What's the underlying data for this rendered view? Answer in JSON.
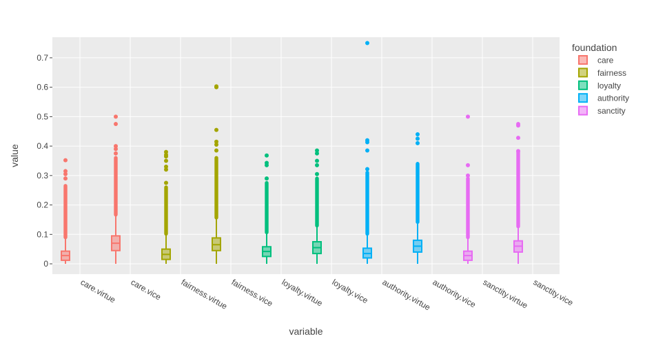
{
  "chart_data": {
    "type": "box",
    "xlabel": "variable",
    "ylabel": "value",
    "ylim": [
      -0.035,
      0.77
    ],
    "yticks": [
      0,
      0.1,
      0.2,
      0.3,
      0.4,
      0.5,
      0.6,
      0.7
    ],
    "ytick_labels": [
      "0",
      "0.1",
      "0.2",
      "0.3",
      "0.4",
      "0.5",
      "0.6",
      "0.7"
    ],
    "grid": true,
    "legend": {
      "title": "foundation",
      "placement": "top-right",
      "items": [
        {
          "name": "care",
          "color": "#F8766D"
        },
        {
          "name": "fairness",
          "color": "#A3A500"
        },
        {
          "name": "loyalty",
          "color": "#00BF7D"
        },
        {
          "name": "authority",
          "color": "#00B0F6"
        },
        {
          "name": "sanctity",
          "color": "#E76BF3"
        }
      ]
    },
    "categories": [
      "care.virtue",
      "care.vice",
      "fairness.virtue",
      "fairness.vice",
      "loyalty.virtue",
      "loyalty.vice",
      "authority.virtue",
      "authority.vice",
      "sanctity.virtue",
      "sanctity.vice"
    ],
    "boxes": [
      {
        "category": "care.virtue",
        "foundation": "care",
        "q1": 0.012,
        "median": 0.028,
        "q3": 0.043,
        "whisker_low": 0.0,
        "whisker_high": 0.088,
        "outliers_from": 0.09,
        "outliers_to": 0.265,
        "outliers": [
          0.29,
          0.305,
          0.315,
          0.352
        ]
      },
      {
        "category": "care.vice",
        "foundation": "care",
        "q1": 0.045,
        "median": 0.07,
        "q3": 0.095,
        "whisker_low": 0.0,
        "whisker_high": 0.165,
        "outliers_from": 0.167,
        "outliers_to": 0.36,
        "outliers": [
          0.375,
          0.39,
          0.4,
          0.475,
          0.5
        ]
      },
      {
        "category": "fairness.virtue",
        "foundation": "fairness",
        "q1": 0.015,
        "median": 0.032,
        "q3": 0.05,
        "whisker_low": 0.0,
        "whisker_high": 0.1,
        "outliers_from": 0.102,
        "outliers_to": 0.26,
        "outliers": [
          0.275,
          0.32,
          0.33,
          0.35,
          0.365,
          0.37,
          0.38
        ]
      },
      {
        "category": "fairness.vice",
        "foundation": "fairness",
        "q1": 0.045,
        "median": 0.065,
        "q3": 0.088,
        "whisker_low": 0.0,
        "whisker_high": 0.155,
        "outliers_from": 0.157,
        "outliers_to": 0.36,
        "outliers": [
          0.385,
          0.405,
          0.415,
          0.455,
          0.6,
          0.603
        ]
      },
      {
        "category": "loyalty.virtue",
        "foundation": "loyalty",
        "q1": 0.025,
        "median": 0.042,
        "q3": 0.058,
        "whisker_low": 0.0,
        "whisker_high": 0.105,
        "outliers_from": 0.107,
        "outliers_to": 0.275,
        "outliers": [
          0.29,
          0.335,
          0.343,
          0.368
        ]
      },
      {
        "category": "loyalty.vice",
        "foundation": "loyalty",
        "q1": 0.035,
        "median": 0.055,
        "q3": 0.075,
        "whisker_low": 0.0,
        "whisker_high": 0.128,
        "outliers_from": 0.13,
        "outliers_to": 0.29,
        "outliers": [
          0.305,
          0.335,
          0.35,
          0.375,
          0.385
        ]
      },
      {
        "category": "authority.virtue",
        "foundation": "authority",
        "q1": 0.02,
        "median": 0.035,
        "q3": 0.053,
        "whisker_low": 0.0,
        "whisker_high": 0.1,
        "outliers_from": 0.102,
        "outliers_to": 0.31,
        "outliers": [
          0.322,
          0.385,
          0.413,
          0.42,
          0.75
        ]
      },
      {
        "category": "authority.vice",
        "foundation": "authority",
        "q1": 0.04,
        "median": 0.06,
        "q3": 0.08,
        "whisker_low": 0.0,
        "whisker_high": 0.14,
        "outliers_from": 0.142,
        "outliers_to": 0.34,
        "outliers": [
          0.41,
          0.425,
          0.44
        ]
      },
      {
        "category": "sanctity.virtue",
        "foundation": "sanctity",
        "q1": 0.012,
        "median": 0.028,
        "q3": 0.043,
        "whisker_low": 0.0,
        "whisker_high": 0.088,
        "outliers_from": 0.09,
        "outliers_to": 0.29,
        "outliers": [
          0.3,
          0.335,
          0.5
        ]
      },
      {
        "category": "sanctity.vice",
        "foundation": "sanctity",
        "q1": 0.04,
        "median": 0.06,
        "q3": 0.078,
        "whisker_low": 0.0,
        "whisker_high": 0.125,
        "outliers_from": 0.127,
        "outliers_to": 0.38,
        "outliers": [
          0.383,
          0.428,
          0.47,
          0.475
        ]
      }
    ]
  }
}
